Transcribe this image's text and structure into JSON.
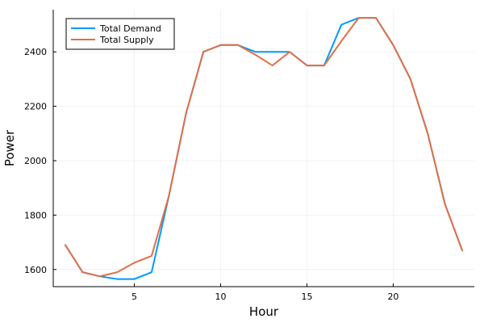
{
  "chart_data": {
    "type": "line",
    "title": "",
    "xlabel": "Hour",
    "ylabel": "Power",
    "xlim": [
      0.3,
      24.7
    ],
    "ylim": [
      1537,
      2555
    ],
    "x_ticks": [
      5,
      10,
      15,
      20
    ],
    "y_ticks": [
      1600,
      1800,
      2000,
      2200,
      2400
    ],
    "grid": true,
    "legend_position": "top-left",
    "x": [
      1,
      2,
      3,
      4,
      5,
      6,
      7,
      8,
      9,
      10,
      11,
      12,
      13,
      14,
      15,
      16,
      17,
      18,
      19,
      20,
      21,
      22,
      23,
      24
    ],
    "series": [
      {
        "name": "Total Demand",
        "color": "#009AFA",
        "values": [
          1690,
          1590,
          1575,
          1565,
          1565,
          1590,
          1870,
          2175,
          2400,
          2425,
          2425,
          2400,
          2400,
          2400,
          2350,
          2350,
          2500,
          2525,
          2525,
          2425,
          2300,
          2100,
          1840,
          1670
        ]
      },
      {
        "name": "Total Supply",
        "color": "#E26F46",
        "values": [
          1690,
          1590,
          1575,
          1590,
          1625,
          1650,
          1870,
          2175,
          2400,
          2425,
          2425,
          2390,
          2350,
          2400,
          2350,
          2350,
          2440,
          2525,
          2525,
          2425,
          2300,
          2100,
          1840,
          1670
        ]
      }
    ]
  }
}
